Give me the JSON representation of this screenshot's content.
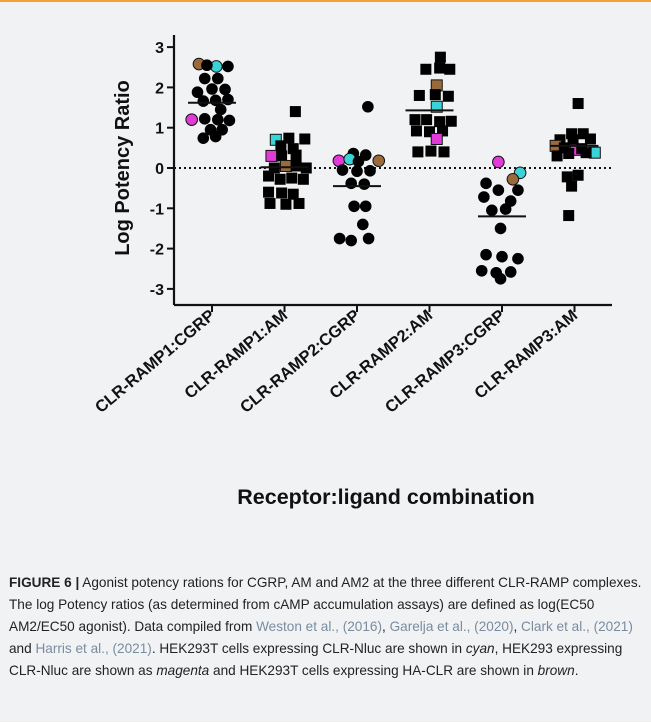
{
  "chart_data": {
    "type": "scatter",
    "ylabel": "Log Potency Ratio",
    "xlabel": "Receptor:ligand combination",
    "ylim": [
      -3.4,
      3.3
    ],
    "yticks": [
      -3,
      -2,
      -1,
      0,
      1,
      2,
      3
    ],
    "categories": [
      "CLR-RAMP1:CGRP",
      "CLR-RAMP1:AM",
      "CLR-RAMP2:CGRP",
      "CLR-RAMP2:AM",
      "CLR-RAMP3:CGRP",
      "CLR-RAMP3:AM"
    ],
    "zero_line": "dotted",
    "colors": {
      "default": "#000000",
      "cyan": "#39d3d8",
      "magenta": "#e23ad8",
      "brown": "#9b6a3b"
    },
    "groups": [
      {
        "category": "CLR-RAMP1:CGRP",
        "marker": "circle",
        "mean": 1.62,
        "points": [
          {
            "x": -0.18,
            "y": 2.58,
            "c": "brown"
          },
          {
            "x": 0.06,
            "y": 2.52,
            "c": "cyan"
          },
          {
            "x": -0.07,
            "y": 2.55,
            "c": "default"
          },
          {
            "x": 0.22,
            "y": 2.52,
            "c": "default"
          },
          {
            "x": -0.1,
            "y": 2.22,
            "c": "default"
          },
          {
            "x": 0.08,
            "y": 2.22,
            "c": "default"
          },
          {
            "x": -0.2,
            "y": 1.88,
            "c": "default"
          },
          {
            "x": 0.0,
            "y": 1.96,
            "c": "default"
          },
          {
            "x": 0.18,
            "y": 1.95,
            "c": "default"
          },
          {
            "x": -0.12,
            "y": 1.66,
            "c": "default"
          },
          {
            "x": 0.05,
            "y": 1.68,
            "c": "default"
          },
          {
            "x": 0.22,
            "y": 1.7,
            "c": "default"
          },
          {
            "x": 0.12,
            "y": 1.45,
            "c": "default"
          },
          {
            "x": -0.28,
            "y": 1.2,
            "c": "magenta"
          },
          {
            "x": -0.1,
            "y": 1.22,
            "c": "default"
          },
          {
            "x": 0.08,
            "y": 1.2,
            "c": "default"
          },
          {
            "x": 0.24,
            "y": 1.18,
            "c": "default"
          },
          {
            "x": -0.02,
            "y": 0.95,
            "c": "default"
          },
          {
            "x": 0.14,
            "y": 0.95,
            "c": "default"
          },
          {
            "x": -0.12,
            "y": 0.74,
            "c": "default"
          },
          {
            "x": 0.05,
            "y": 0.78,
            "c": "default"
          }
        ]
      },
      {
        "category": "CLR-RAMP1:AM",
        "marker": "square",
        "mean": 0.02,
        "points": [
          {
            "x": 0.15,
            "y": 1.4,
            "c": "default"
          },
          {
            "x": -0.12,
            "y": 0.7,
            "c": "cyan"
          },
          {
            "x": 0.06,
            "y": 0.74,
            "c": "default"
          },
          {
            "x": 0.28,
            "y": 0.72,
            "c": "default"
          },
          {
            "x": -0.05,
            "y": 0.55,
            "c": "default"
          },
          {
            "x": 0.12,
            "y": 0.48,
            "c": "default"
          },
          {
            "x": -0.18,
            "y": 0.3,
            "c": "magenta"
          },
          {
            "x": -0.04,
            "y": 0.3,
            "c": "default"
          },
          {
            "x": 0.16,
            "y": 0.32,
            "c": "default"
          },
          {
            "x": 0.02,
            "y": 0.05,
            "c": "brown"
          },
          {
            "x": -0.14,
            "y": 0.0,
            "c": "default"
          },
          {
            "x": 0.16,
            "y": 0.05,
            "c": "default"
          },
          {
            "x": 0.3,
            "y": 0.0,
            "c": "default"
          },
          {
            "x": -0.22,
            "y": -0.2,
            "c": "default"
          },
          {
            "x": -0.06,
            "y": -0.28,
            "c": "default"
          },
          {
            "x": 0.1,
            "y": -0.25,
            "c": "default"
          },
          {
            "x": 0.26,
            "y": -0.28,
            "c": "default"
          },
          {
            "x": -0.22,
            "y": -0.6,
            "c": "default"
          },
          {
            "x": -0.04,
            "y": -0.62,
            "c": "default"
          },
          {
            "x": 0.12,
            "y": -0.65,
            "c": "default"
          },
          {
            "x": -0.2,
            "y": -0.88,
            "c": "default"
          },
          {
            "x": 0.02,
            "y": -0.9,
            "c": "default"
          },
          {
            "x": 0.2,
            "y": -0.88,
            "c": "default"
          }
        ]
      },
      {
        "category": "CLR-RAMP2:CGRP",
        "marker": "circle",
        "mean": -0.45,
        "points": [
          {
            "x": 0.15,
            "y": 1.52,
            "c": "default"
          },
          {
            "x": -0.05,
            "y": 0.36,
            "c": "default"
          },
          {
            "x": 0.12,
            "y": 0.32,
            "c": "default"
          },
          {
            "x": -0.25,
            "y": 0.18,
            "c": "magenta"
          },
          {
            "x": -0.1,
            "y": 0.22,
            "c": "cyan"
          },
          {
            "x": 0.02,
            "y": 0.16,
            "c": "default"
          },
          {
            "x": 0.3,
            "y": 0.18,
            "c": "brown"
          },
          {
            "x": -0.2,
            "y": -0.05,
            "c": "default"
          },
          {
            "x": 0.0,
            "y": -0.08,
            "c": "default"
          },
          {
            "x": 0.18,
            "y": -0.07,
            "c": "default"
          },
          {
            "x": -0.08,
            "y": -0.38,
            "c": "default"
          },
          {
            "x": 0.1,
            "y": -0.4,
            "c": "default"
          },
          {
            "x": -0.04,
            "y": -0.95,
            "c": "default"
          },
          {
            "x": 0.12,
            "y": -0.95,
            "c": "default"
          },
          {
            "x": 0.08,
            "y": -1.4,
            "c": "default"
          },
          {
            "x": -0.24,
            "y": -1.75,
            "c": "default"
          },
          {
            "x": -0.08,
            "y": -1.8,
            "c": "default"
          },
          {
            "x": 0.16,
            "y": -1.75,
            "c": "default"
          }
        ]
      },
      {
        "category": "CLR-RAMP2:AM",
        "marker": "square",
        "mean": 1.43,
        "points": [
          {
            "x": 0.15,
            "y": 2.75,
            "c": "default"
          },
          {
            "x": -0.05,
            "y": 2.45,
            "c": "default"
          },
          {
            "x": 0.14,
            "y": 2.48,
            "c": "default"
          },
          {
            "x": 0.28,
            "y": 2.45,
            "c": "default"
          },
          {
            "x": 0.1,
            "y": 2.05,
            "c": "brown"
          },
          {
            "x": -0.14,
            "y": 1.8,
            "c": "default"
          },
          {
            "x": 0.08,
            "y": 1.82,
            "c": "default"
          },
          {
            "x": 0.26,
            "y": 1.78,
            "c": "default"
          },
          {
            "x": 0.1,
            "y": 1.52,
            "c": "cyan"
          },
          {
            "x": -0.2,
            "y": 1.2,
            "c": "default"
          },
          {
            "x": -0.04,
            "y": 1.2,
            "c": "default"
          },
          {
            "x": 0.14,
            "y": 1.15,
            "c": "default"
          },
          {
            "x": 0.3,
            "y": 1.16,
            "c": "default"
          },
          {
            "x": -0.18,
            "y": 0.92,
            "c": "default"
          },
          {
            "x": 0.0,
            "y": 0.9,
            "c": "default"
          },
          {
            "x": 0.18,
            "y": 0.92,
            "c": "default"
          },
          {
            "x": 0.1,
            "y": 0.72,
            "c": "magenta"
          },
          {
            "x": -0.16,
            "y": 0.4,
            "c": "default"
          },
          {
            "x": 0.02,
            "y": 0.42,
            "c": "default"
          },
          {
            "x": 0.2,
            "y": 0.4,
            "c": "default"
          }
        ]
      },
      {
        "category": "CLR-RAMP3:CGRP",
        "marker": "circle",
        "mean": -1.2,
        "points": [
          {
            "x": -0.05,
            "y": 0.15,
            "c": "magenta"
          },
          {
            "x": 0.25,
            "y": -0.12,
            "c": "cyan"
          },
          {
            "x": -0.22,
            "y": -0.38,
            "c": "default"
          },
          {
            "x": 0.15,
            "y": -0.28,
            "c": "brown"
          },
          {
            "x": -0.05,
            "y": -0.55,
            "c": "default"
          },
          {
            "x": 0.22,
            "y": -0.55,
            "c": "default"
          },
          {
            "x": -0.25,
            "y": -0.72,
            "c": "default"
          },
          {
            "x": 0.12,
            "y": -0.82,
            "c": "default"
          },
          {
            "x": -0.14,
            "y": -1.05,
            "c": "default"
          },
          {
            "x": 0.05,
            "y": -1.02,
            "c": "default"
          },
          {
            "x": -0.02,
            "y": -1.5,
            "c": "default"
          },
          {
            "x": -0.22,
            "y": -2.15,
            "c": "default"
          },
          {
            "x": 0.0,
            "y": -2.2,
            "c": "default"
          },
          {
            "x": 0.22,
            "y": -2.25,
            "c": "default"
          },
          {
            "x": -0.28,
            "y": -2.55,
            "c": "default"
          },
          {
            "x": -0.08,
            "y": -2.6,
            "c": "default"
          },
          {
            "x": 0.12,
            "y": -2.58,
            "c": "default"
          },
          {
            "x": -0.02,
            "y": -2.75,
            "c": "default"
          }
        ]
      },
      {
        "category": "CLR-RAMP3:AM",
        "marker": "square",
        "mean": 0.55,
        "points": [
          {
            "x": 0.05,
            "y": 1.6,
            "c": "default"
          },
          {
            "x": -0.04,
            "y": 0.85,
            "c": "default"
          },
          {
            "x": 0.12,
            "y": 0.85,
            "c": "default"
          },
          {
            "x": -0.2,
            "y": 0.7,
            "c": "default"
          },
          {
            "x": -0.02,
            "y": 0.7,
            "c": "default"
          },
          {
            "x": 0.22,
            "y": 0.72,
            "c": "default"
          },
          {
            "x": -0.26,
            "y": 0.55,
            "c": "brown"
          },
          {
            "x": 0.02,
            "y": 0.45,
            "c": "magenta"
          },
          {
            "x": 0.28,
            "y": 0.38,
            "c": "cyan"
          },
          {
            "x": -0.14,
            "y": 0.5,
            "c": "default"
          },
          {
            "x": 0.1,
            "y": 0.48,
            "c": "default"
          },
          {
            "x": -0.24,
            "y": 0.3,
            "c": "default"
          },
          {
            "x": -0.08,
            "y": 0.36,
            "c": "default"
          },
          {
            "x": 0.16,
            "y": 0.38,
            "c": "default"
          },
          {
            "x": -0.1,
            "y": -0.22,
            "c": "default"
          },
          {
            "x": 0.05,
            "y": -0.18,
            "c": "default"
          },
          {
            "x": -0.04,
            "y": -0.45,
            "c": "default"
          },
          {
            "x": -0.08,
            "y": -1.18,
            "c": "default"
          }
        ]
      }
    ]
  },
  "caption": {
    "label": "FIGURE 6 |",
    "text_1": " Agonist potency rations for CGRP, AM and AM2 at the three different CLR-RAMP complexes. The log Potency ratios (as determined from cAMP accumulation assays) are defined as log(EC50 AM2/EC50 agonist). Data compiled from ",
    "cite_1": "Weston et al., (2016)",
    "sep_1": ", ",
    "cite_2": "Garelja et al., (2020)",
    "sep_2": ", ",
    "cite_3": "Clark et al., (2021)",
    "sep_3": " and ",
    "cite_4": "Harris et al., (2021)",
    "text_2": ". HEK293T cells expressing CLR-Nluc are shown in ",
    "em_cyan": "cyan",
    "text_3": ", HEK293 expressing CLR-Nluc are shown as ",
    "em_magenta": "magenta",
    "text_4": " and HEK293T cells expressing HA-CLR are shown in ",
    "em_brown": "brown",
    "text_5": "."
  }
}
